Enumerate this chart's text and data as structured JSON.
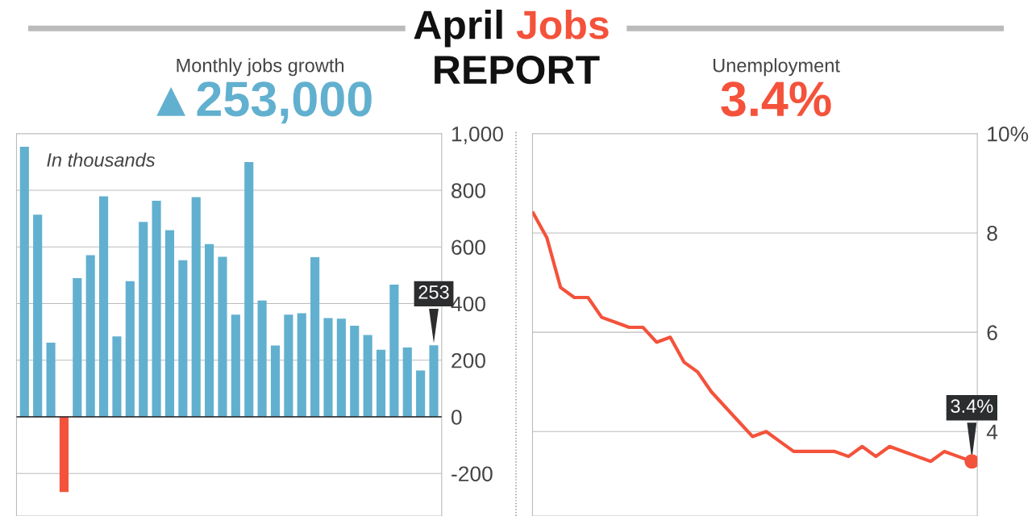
{
  "chart_data": [
    {
      "type": "bar",
      "title": "Monthly jobs growth",
      "subtitle": "▲253,000",
      "annotations": [
        "April Jobs",
        "REPORT",
        "In thousands"
      ],
      "categories": [
        null,
        null,
        null,
        null,
        null,
        null,
        null,
        null,
        null,
        null,
        null,
        null,
        null,
        null,
        null,
        null,
        null,
        null,
        null,
        null,
        null,
        null,
        null,
        null,
        null,
        null,
        null,
        null,
        null,
        null,
        null,
        null
      ],
      "values": [
        954,
        714,
        262,
        -265,
        490,
        571,
        779,
        284,
        479,
        688,
        763,
        659,
        553,
        776,
        610,
        565,
        361,
        900,
        411,
        252,
        361,
        366,
        564,
        349,
        347,
        322,
        289,
        237,
        467,
        245,
        164,
        253
      ],
      "colors": [
        "#62b0cf",
        "#62b0cf",
        "#62b0cf",
        "#f4523b",
        "#62b0cf",
        "#62b0cf",
        "#62b0cf",
        "#62b0cf",
        "#62b0cf",
        "#62b0cf",
        "#62b0cf",
        "#62b0cf",
        "#62b0cf",
        "#62b0cf",
        "#62b0cf",
        "#62b0cf",
        "#62b0cf",
        "#62b0cf",
        "#62b0cf",
        "#62b0cf",
        "#62b0cf",
        "#62b0cf",
        "#62b0cf",
        "#62b0cf",
        "#62b0cf",
        "#62b0cf",
        "#62b0cf",
        "#62b0cf",
        "#62b0cf",
        "#62b0cf",
        "#62b0cf",
        "#62b0cf"
      ],
      "value_labels": [
        null,
        null,
        null,
        null,
        null,
        null,
        null,
        null,
        null,
        null,
        null,
        null,
        null,
        null,
        null,
        null,
        null,
        null,
        null,
        null,
        null,
        null,
        null,
        null,
        null,
        null,
        null,
        null,
        null,
        null,
        null,
        "253"
      ],
      "ylim": [
        -350,
        1000
      ],
      "yticks": [
        -200,
        0,
        200,
        400,
        600,
        800,
        {
          "value": 1000,
          "label": "1,000"
        }
      ],
      "grid": "y"
    },
    {
      "type": "line",
      "title": "Unemployment",
      "subtitle": "3.4%",
      "categories": [
        null,
        null,
        null,
        null,
        null,
        null,
        null,
        null,
        null,
        null,
        null,
        null,
        null,
        null,
        null,
        null,
        null,
        null,
        null,
        null,
        null,
        null,
        null,
        null,
        null,
        null,
        null,
        null,
        null,
        null,
        null,
        null,
        null
      ],
      "series": [
        {
          "color": "#f4523b",
          "values": [
            8.4,
            7.9,
            6.9,
            6.7,
            6.7,
            6.3,
            6.2,
            6.1,
            6.1,
            5.8,
            5.9,
            5.4,
            5.2,
            4.8,
            4.5,
            4.2,
            3.9,
            4.0,
            3.8,
            3.6,
            3.6,
            3.6,
            3.6,
            3.5,
            3.7,
            3.5,
            3.7,
            3.6,
            3.5,
            3.4,
            3.6,
            3.5,
            3.4
          ],
          "value_labels": [
            null,
            null,
            null,
            null,
            null,
            null,
            null,
            null,
            null,
            null,
            null,
            null,
            null,
            null,
            null,
            null,
            null,
            null,
            null,
            null,
            null,
            null,
            null,
            null,
            null,
            null,
            null,
            null,
            null,
            null,
            null,
            null,
            "3.4%"
          ]
        }
      ],
      "ylim": [
        2.3,
        10
      ],
      "yticks": [
        4,
        6,
        8,
        {
          "value": 10,
          "label": "10%"
        }
      ],
      "grid": "y"
    }
  ]
}
